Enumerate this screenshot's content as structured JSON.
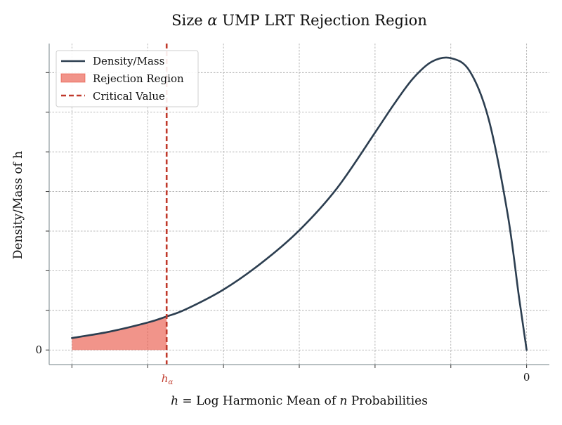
{
  "chart_data": {
    "type": "area",
    "title_prefix": "Size ",
    "title_symbol": "α",
    "title_suffix": " UMP LRT Rejection Region",
    "xlabel_prefix": "h",
    "xlabel_middle": " =  Log Harmonic Mean of ",
    "xlabel_n": "n",
    "xlabel_suffix": " Probabilities",
    "ylabel": "Density/Mass of h",
    "xlim": [
      -6.3,
      0.3
    ],
    "ylim": [
      -0.05,
      1.05
    ],
    "x_ticks": [
      -6,
      -5,
      -4,
      -3,
      -2,
      -1,
      0
    ],
    "x_tick_labels": {
      "0": "0"
    },
    "y_ticks": [
      0,
      0.1358,
      0.2716,
      0.4074,
      0.5432,
      0.679,
      0.8148,
      0.9506
    ],
    "y_tick_labels": {
      "0": "0"
    },
    "grid": true,
    "legend_position": "top-left",
    "legend": [
      {
        "label": "Density/Mass",
        "kind": "line",
        "color": "#2c3e50"
      },
      {
        "label": "Rejection Region",
        "kind": "patch",
        "color": "#e74c3c"
      },
      {
        "label": "Critical Value",
        "kind": "dashed-line",
        "color": "#c0392b"
      }
    ],
    "critical_value": {
      "x": -4.75,
      "label_main": "h",
      "label_sub": "α"
    },
    "series": [
      {
        "name": "Density/Mass",
        "color": "#2c3e50",
        "x": [
          -6,
          -5.5,
          -5,
          -4.75,
          -4.5,
          -4,
          -3.5,
          -3,
          -2.5,
          -2,
          -1.75,
          -1.5,
          -1.25,
          -1,
          -0.75,
          -0.5,
          -0.25,
          -0.1,
          0
        ],
        "y": [
          0.041,
          0.063,
          0.094,
          0.115,
          0.139,
          0.207,
          0.298,
          0.41,
          0.555,
          0.745,
          0.842,
          0.93,
          0.988,
          1.0,
          0.955,
          0.79,
          0.465,
          0.18,
          0.0
        ]
      }
    ],
    "rejection_region": {
      "color": "#e74c3c",
      "x_from": -6,
      "x_to": -4.75
    }
  }
}
